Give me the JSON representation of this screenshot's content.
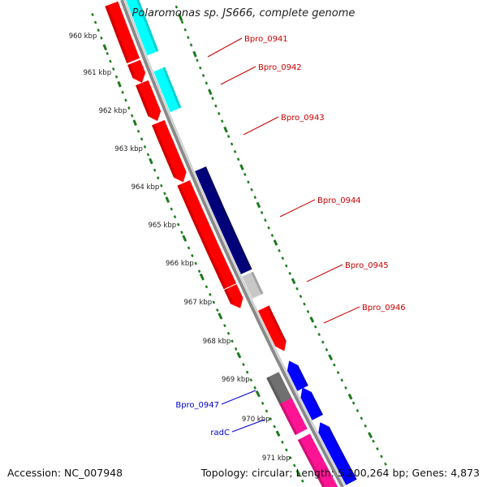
{
  "title": "Polaromonas sp. JS666, complete genome",
  "footer": {
    "accession": "Accession: NC_007948",
    "summary": "Topology: circular; Length: 5,200,264 bp; Genes: 4,873"
  },
  "ruler": {
    "ticks": [
      {
        "label": "960 kbp"
      },
      {
        "label": "961 kbp"
      },
      {
        "label": "962 kbp"
      },
      {
        "label": "963 kbp"
      },
      {
        "label": "964 kbp"
      },
      {
        "label": "965 kbp"
      },
      {
        "label": "966 kbp"
      },
      {
        "label": "967 kbp"
      },
      {
        "label": "968 kbp"
      },
      {
        "label": "969 kbp"
      },
      {
        "label": "970 kbp"
      },
      {
        "label": "971 kbp"
      }
    ]
  },
  "colors": {
    "tick": "#1a7a1a",
    "red": "#ff0000",
    "cyan": "#00ffff",
    "navy": "#00007a",
    "gray": "#c8c8c8",
    "darkgray": "#707070",
    "blue": "#0000ff",
    "pink": "#ff1493",
    "label_red": "#cc0000",
    "label_blue": "#0000cc"
  },
  "gene_labels": [
    {
      "name": "Bpro_0941",
      "color": "label_red"
    },
    {
      "name": "Bpro_0942",
      "color": "label_red"
    },
    {
      "name": "Bpro_0943",
      "color": "label_red"
    },
    {
      "name": "Bpro_0944",
      "color": "label_red"
    },
    {
      "name": "Bpro_0945",
      "color": "label_red"
    },
    {
      "name": "Bpro_0946",
      "color": "label_red"
    },
    {
      "name": "Bpro_0947",
      "color": "label_blue"
    },
    {
      "name": "radC",
      "color": "label_blue"
    }
  ]
}
